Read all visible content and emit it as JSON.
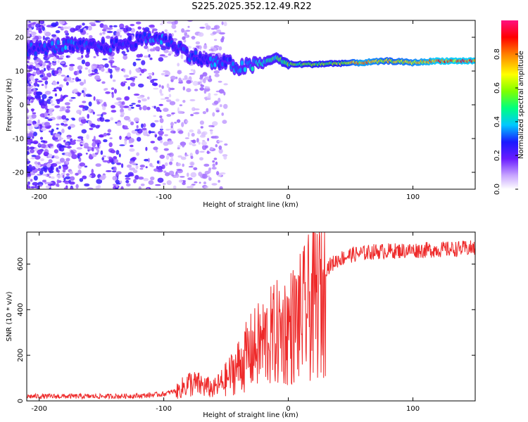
{
  "title": "S225.2025.352.12.49.R22",
  "colors": {
    "spectrogram_low": "#7a3cff",
    "snr_line": "#ee2a2a"
  },
  "chart_data": [
    {
      "type": "heatmap",
      "name": "spectrogram",
      "xlabel": "Height of straight line (km)",
      "ylabel": "Frequency (Hz)",
      "xlim": [
        -210,
        150
      ],
      "ylim": [
        -25,
        25
      ],
      "xticks": [
        -200,
        -100,
        0,
        100
      ],
      "xtick_labels": [
        "-200",
        "-100",
        "0",
        "100"
      ],
      "yticks": [
        20,
        10,
        0,
        -10,
        -20
      ],
      "ytick_labels": [
        "20",
        "10",
        "0",
        "-10",
        "-20"
      ],
      "colorbar": {
        "label": "Normalized spectral amplitude",
        "range": [
          0,
          1
        ],
        "ticks": [
          0,
          0.2,
          0.4,
          0.6,
          0.8
        ],
        "tick_labels": [
          "0.0",
          "0.2",
          "0.4",
          "0.6",
          "0.8"
        ]
      },
      "dominant_line": [
        {
          "x": -200,
          "f": 16.5,
          "amp": 0.3
        },
        {
          "x": -180,
          "f": 17.5,
          "amp": 0.35
        },
        {
          "x": -160,
          "f": 17.0,
          "amp": 0.3
        },
        {
          "x": -140,
          "f": 17.5,
          "amp": 0.3
        },
        {
          "x": -120,
          "f": 19.0,
          "amp": 0.3
        },
        {
          "x": -110,
          "f": 20.0,
          "amp": 0.35
        },
        {
          "x": -100,
          "f": 19.5,
          "amp": 0.35
        },
        {
          "x": -90,
          "f": 17.5,
          "amp": 0.3
        },
        {
          "x": -80,
          "f": 15.0,
          "amp": 0.3
        },
        {
          "x": -70,
          "f": 13.5,
          "amp": 0.3
        },
        {
          "x": -60,
          "f": 12.5,
          "amp": 0.35
        },
        {
          "x": -50,
          "f": 12.5,
          "amp": 0.3
        },
        {
          "x": -40,
          "f": 11.0,
          "amp": 0.35
        },
        {
          "x": -30,
          "f": 11.5,
          "amp": 0.4
        },
        {
          "x": -20,
          "f": 12.5,
          "amp": 0.45
        },
        {
          "x": -10,
          "f": 14.0,
          "amp": 0.5
        },
        {
          "x": 0,
          "f": 12.0,
          "amp": 0.55
        },
        {
          "x": 20,
          "f": 12.0,
          "amp": 0.6
        },
        {
          "x": 40,
          "f": 12.3,
          "amp": 0.6
        },
        {
          "x": 60,
          "f": 12.5,
          "amp": 0.8
        },
        {
          "x": 80,
          "f": 13.0,
          "amp": 0.7
        },
        {
          "x": 100,
          "f": 12.5,
          "amp": 0.75
        },
        {
          "x": 120,
          "f": 13.0,
          "amp": 0.85
        },
        {
          "x": 140,
          "f": 13.0,
          "amp": 0.85
        },
        {
          "x": 150,
          "f": 13.0,
          "amp": 0.85
        }
      ]
    },
    {
      "type": "line",
      "name": "snr",
      "xlabel": "Height of straight line (km)",
      "ylabel": "SNR (10 * v/v)",
      "xlim": [
        -210,
        150
      ],
      "ylim": [
        0,
        740
      ],
      "xticks": [
        -200,
        -100,
        0,
        100
      ],
      "xtick_labels": [
        "-200",
        "-100",
        "0",
        "100"
      ],
      "yticks": [
        0,
        200,
        400,
        600
      ],
      "ytick_labels": [
        "0",
        "200",
        "400",
        "600"
      ],
      "envelope": {
        "x": [
          -210,
          -180,
          -150,
          -120,
          -100,
          -90,
          -80,
          -70,
          -60,
          -50,
          -40,
          -30,
          -20,
          -10,
          0,
          10,
          20,
          30,
          40,
          50,
          70,
          100,
          130,
          150
        ],
        "y": [
          20,
          20,
          20,
          22,
          30,
          45,
          90,
          80,
          60,
          110,
          180,
          250,
          300,
          340,
          370,
          420,
          500,
          580,
          620,
          640,
          655,
          660,
          665,
          670
        ]
      }
    }
  ]
}
